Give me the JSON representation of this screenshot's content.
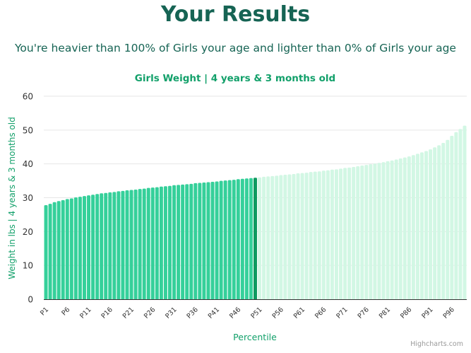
{
  "page": {
    "title": "Your Results",
    "subtitle": "You're heavier than 100% of Girls your age and lighter than 0% of Girls your age"
  },
  "credits": "Highcharts.com",
  "colors": {
    "heading": "#166454",
    "accent": "#12a06a",
    "bar_below": "#35d09a",
    "bar_above": "#d2f7e4",
    "bar_highlight": "#0e9a60",
    "axis_text": "#333333",
    "gridline": "#e6e6e6"
  },
  "chart_data": {
    "type": "bar",
    "title": "Girls Weight | 4 years & 3 months old",
    "xlabel": "Percentile",
    "ylabel": "Weight in lbs | 4 years & 3 months old",
    "ylim": [
      0,
      60
    ],
    "yticks": [
      0,
      10,
      20,
      30,
      40,
      50,
      60
    ],
    "grid": true,
    "highlight_category": "P50",
    "tick_labels": [
      "P1",
      "P6",
      "P11",
      "P16",
      "P21",
      "P26",
      "P31",
      "P36",
      "P41",
      "P46",
      "P51",
      "P56",
      "P61",
      "P66",
      "P71",
      "P76",
      "P81",
      "P86",
      "P91",
      "P96"
    ],
    "categories": [
      "P1",
      "P2",
      "P3",
      "P4",
      "P5",
      "P6",
      "P7",
      "P8",
      "P9",
      "P10",
      "P11",
      "P12",
      "P13",
      "P14",
      "P15",
      "P16",
      "P17",
      "P18",
      "P19",
      "P20",
      "P21",
      "P22",
      "P23",
      "P24",
      "P25",
      "P26",
      "P27",
      "P28",
      "P29",
      "P30",
      "P31",
      "P32",
      "P33",
      "P34",
      "P35",
      "P36",
      "P37",
      "P38",
      "P39",
      "P40",
      "P41",
      "P42",
      "P43",
      "P44",
      "P45",
      "P46",
      "P47",
      "P48",
      "P49",
      "P50",
      "P51",
      "P52",
      "P53",
      "P54",
      "P55",
      "P56",
      "P57",
      "P58",
      "P59",
      "P60",
      "P61",
      "P62",
      "P63",
      "P64",
      "P65",
      "P66",
      "P67",
      "P68",
      "P69",
      "P70",
      "P71",
      "P72",
      "P73",
      "P74",
      "P75",
      "P76",
      "P77",
      "P78",
      "P79",
      "P80",
      "P81",
      "P82",
      "P83",
      "P84",
      "P85",
      "P86",
      "P87",
      "P88",
      "P89",
      "P90",
      "P91",
      "P92",
      "P93",
      "P94",
      "P95",
      "P96",
      "P97",
      "P98",
      "P99"
    ],
    "values": [
      27.8,
      28.2,
      28.7,
      29.0,
      29.3,
      29.6,
      29.8,
      30.1,
      30.3,
      30.5,
      30.7,
      30.9,
      31.1,
      31.3,
      31.4,
      31.6,
      31.7,
      31.9,
      32.0,
      32.2,
      32.3,
      32.4,
      32.6,
      32.7,
      32.9,
      33.0,
      33.1,
      33.3,
      33.4,
      33.5,
      33.7,
      33.8,
      33.9,
      34.0,
      34.1,
      34.3,
      34.4,
      34.5,
      34.6,
      34.7,
      34.8,
      35.0,
      35.1,
      35.2,
      35.3,
      35.5,
      35.6,
      35.7,
      35.8,
      35.9,
      36.0,
      36.2,
      36.3,
      36.4,
      36.5,
      36.7,
      36.8,
      36.9,
      37.0,
      37.2,
      37.3,
      37.4,
      37.6,
      37.7,
      37.8,
      38.0,
      38.1,
      38.3,
      38.4,
      38.6,
      38.8,
      38.9,
      39.1,
      39.3,
      39.5,
      39.7,
      39.9,
      40.1,
      40.3,
      40.5,
      40.8,
      41.0,
      41.3,
      41.6,
      41.9,
      42.2,
      42.6,
      43.0,
      43.4,
      43.8,
      44.3,
      44.9,
      45.5,
      46.2,
      47.1,
      48.3,
      49.4,
      50.3,
      51.3
    ]
  }
}
